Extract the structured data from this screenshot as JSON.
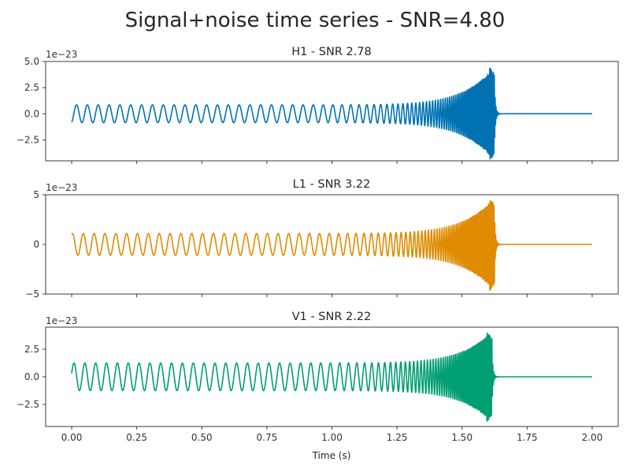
{
  "figure": {
    "title": "Signal+noise time series - SNR=4.80",
    "xlabel": "Time (s)",
    "xticks": [
      "0.00",
      "0.25",
      "0.50",
      "0.75",
      "1.00",
      "1.25",
      "1.50",
      "1.75",
      "2.00"
    ]
  },
  "chart_data": [
    {
      "type": "line",
      "title": "H1 - SNR 2.78",
      "color": "#0072b2",
      "offset_text": "1e−23",
      "ylim": [
        -4.5,
        5.0
      ],
      "yticks": [
        {
          "value": 5.0,
          "label": "5.0"
        },
        {
          "value": 2.5,
          "label": "2.5"
        },
        {
          "value": 0.0,
          "label": "0.0"
        },
        {
          "value": -2.5,
          "label": "−2.5"
        }
      ],
      "signal": {
        "t_start": 0.0,
        "t_merger": 1.625,
        "t_end": 2.0,
        "start_amplitude": 0.85,
        "peak_amplitude": 4.5,
        "start_frequency_hz": 24,
        "merger_frequency_hz": 300,
        "initial_value": -0.8
      }
    },
    {
      "type": "line",
      "title": "L1 - SNR 3.22",
      "color": "#e08b00",
      "offset_text": "1e−23",
      "ylim": [
        -5.0,
        5.0
      ],
      "yticks": [
        {
          "value": 5,
          "label": "5"
        },
        {
          "value": 0,
          "label": "0"
        },
        {
          "value": -5,
          "label": "−5"
        }
      ],
      "signal": {
        "t_start": 0.0,
        "t_merger": 1.625,
        "t_end": 2.0,
        "start_amplitude": 1.1,
        "peak_amplitude": 4.7,
        "start_frequency_hz": 24,
        "merger_frequency_hz": 300,
        "initial_value": 1.0
      }
    },
    {
      "type": "line",
      "title": "V1 - SNR 2.22",
      "color": "#009e73",
      "offset_text": "1e−23",
      "ylim": [
        -4.5,
        4.5
      ],
      "yticks": [
        {
          "value": 2.5,
          "label": "2.5"
        },
        {
          "value": 0.0,
          "label": "0.0"
        },
        {
          "value": -2.5,
          "label": "−2.5"
        }
      ],
      "signal": {
        "t_start": 0.0,
        "t_merger": 1.615,
        "t_end": 2.0,
        "start_amplitude": 1.25,
        "peak_amplitude": 4.1,
        "start_frequency_hz": 24,
        "merger_frequency_hz": 300,
        "initial_value": 0.3
      }
    }
  ]
}
